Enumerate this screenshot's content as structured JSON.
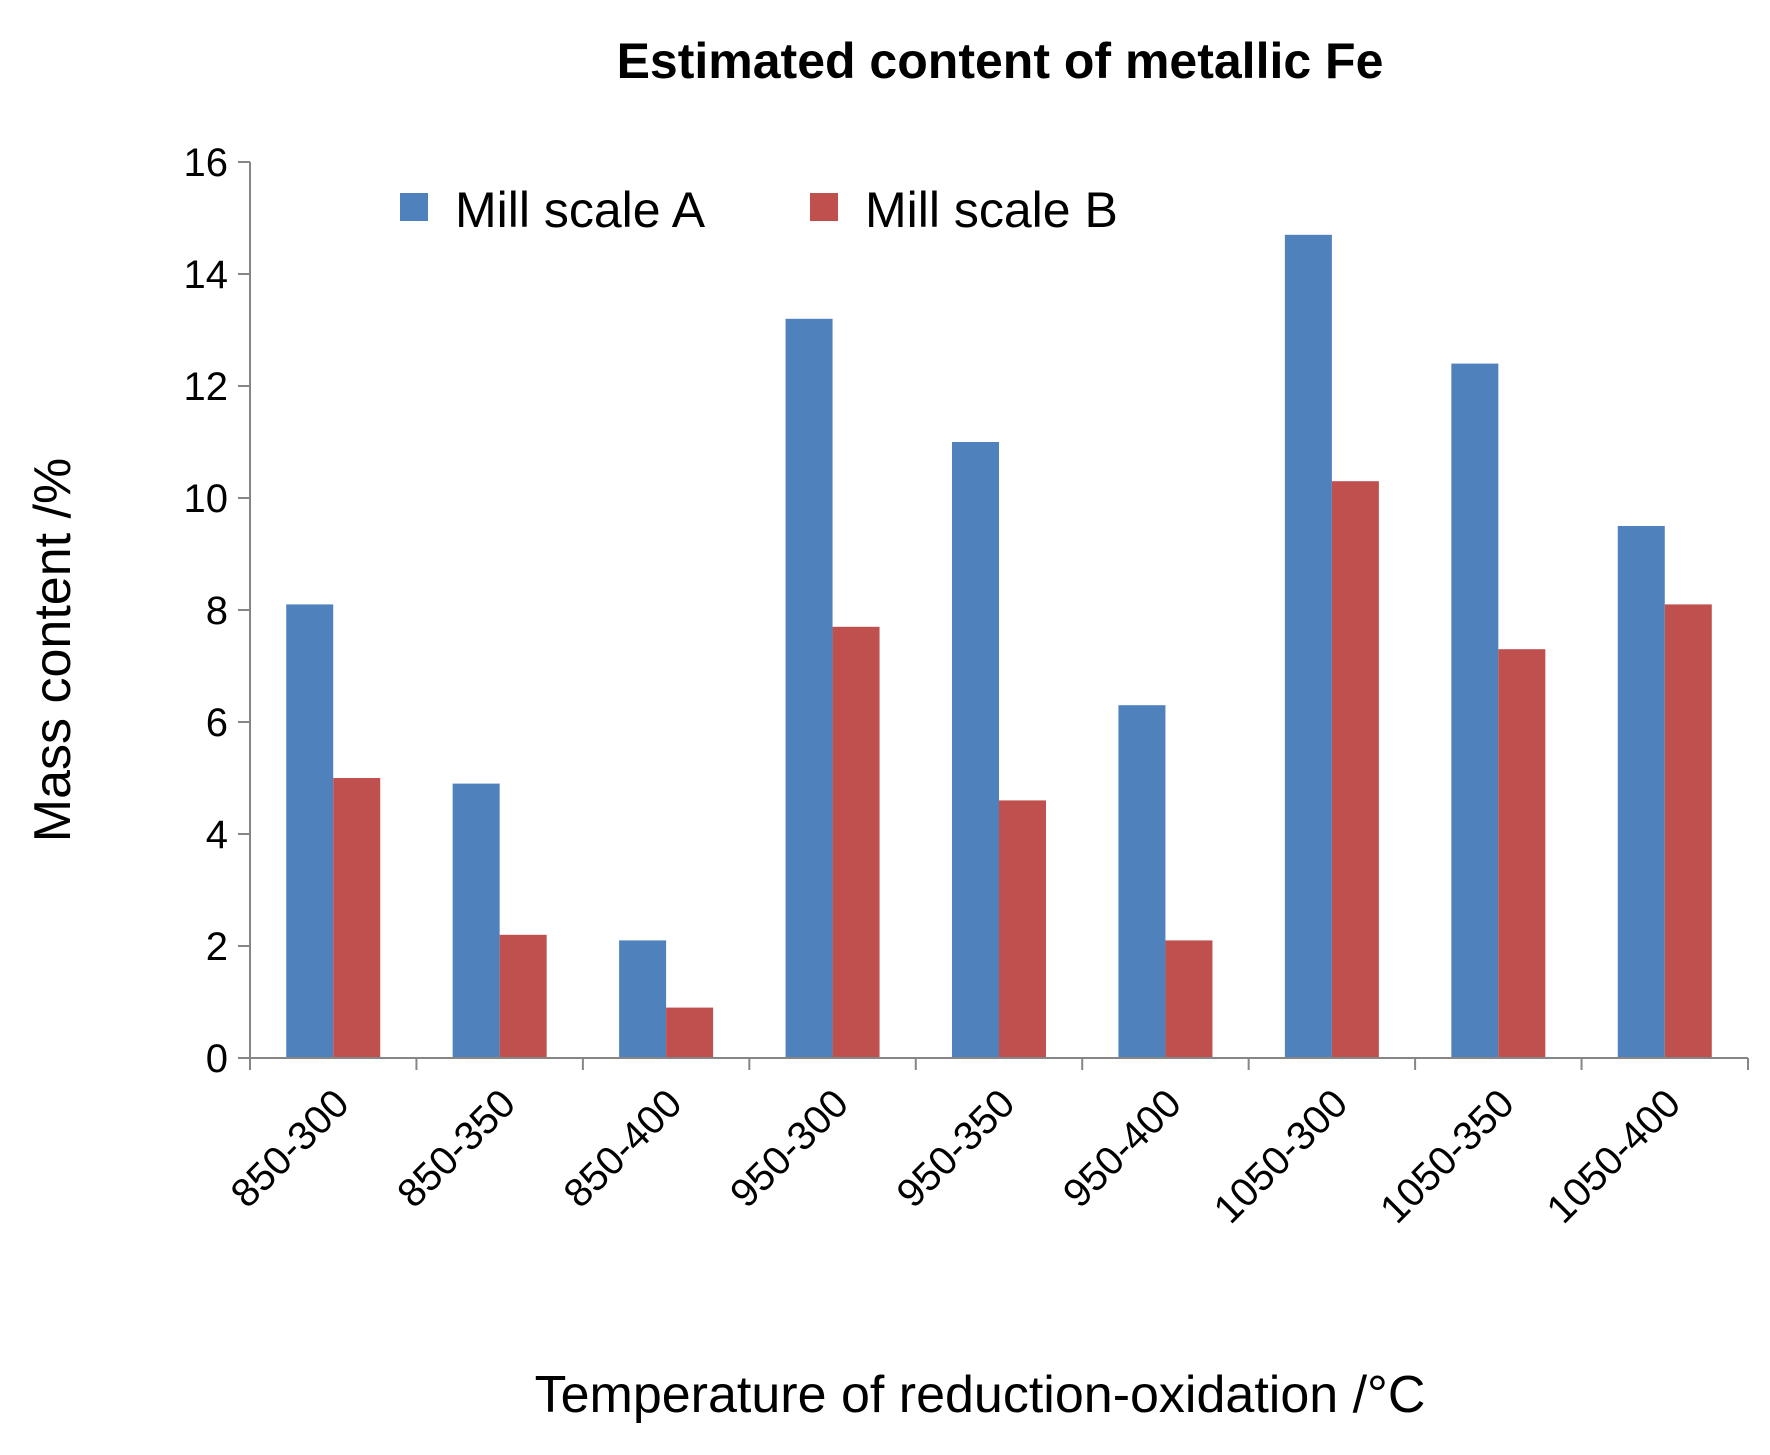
{
  "chart_data": {
    "type": "bar",
    "title": "Estimated content of metallic Fe",
    "xlabel": "Temperature of reduction-oxidation /°C",
    "ylabel": "Mass content /%",
    "ylim": [
      0,
      16
    ],
    "yticks": [
      0,
      2,
      4,
      6,
      8,
      10,
      12,
      14,
      16
    ],
    "grid": false,
    "legend_position": "top",
    "categories": [
      "850-300",
      "850-350",
      "850-400",
      "950-300",
      "950-350",
      "950-400",
      "1050-300",
      "1050-350",
      "1050-400"
    ],
    "series": [
      {
        "name": "Mill scale A",
        "color": "#4F81BD",
        "values": [
          8.1,
          4.9,
          2.1,
          13.2,
          11.0,
          6.3,
          14.7,
          12.4,
          9.5
        ]
      },
      {
        "name": "Mill scale B",
        "color": "#C0504D",
        "values": [
          5.0,
          2.2,
          0.9,
          7.7,
          4.6,
          2.1,
          10.3,
          7.3,
          8.1
        ]
      }
    ]
  }
}
